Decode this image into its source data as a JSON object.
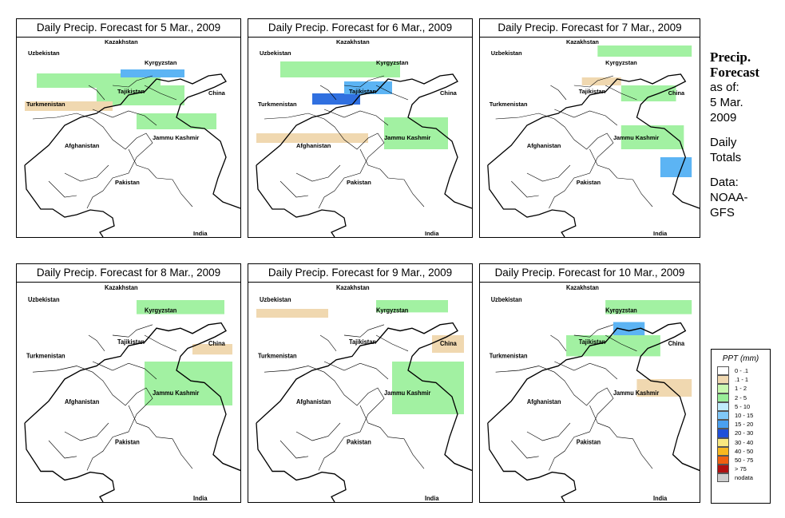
{
  "panels": [
    {
      "title": "Daily Precip. Forecast for  5 Mar., 2009",
      "bands": [
        {
          "x": 25,
          "y": 45,
          "w": 155,
          "h": 18,
          "c": "#a2f1a2"
        },
        {
          "x": 130,
          "y": 40,
          "w": 80,
          "h": 10,
          "c": "#5cb4f4"
        },
        {
          "x": 100,
          "y": 60,
          "w": 110,
          "h": 25,
          "c": "#a2f1a2"
        },
        {
          "x": 150,
          "y": 95,
          "w": 100,
          "h": 20,
          "c": "#a2f1a2"
        },
        {
          "x": 10,
          "y": 80,
          "w": 110,
          "h": 12,
          "c": "#f0d8b0"
        }
      ]
    },
    {
      "title": "Daily Precip. Forecast for  6 Mar., 2009",
      "bands": [
        {
          "x": 40,
          "y": 30,
          "w": 150,
          "h": 20,
          "c": "#a2f1a2"
        },
        {
          "x": 80,
          "y": 70,
          "w": 60,
          "h": 14,
          "c": "#3070e0"
        },
        {
          "x": 120,
          "y": 55,
          "w": 60,
          "h": 16,
          "c": "#5cb4f4"
        },
        {
          "x": 170,
          "y": 100,
          "w": 80,
          "h": 40,
          "c": "#a2f1a2"
        },
        {
          "x": 10,
          "y": 120,
          "w": 140,
          "h": 12,
          "c": "#f0d8b0"
        }
      ]
    },
    {
      "title": "Daily Precip. Forecast for  7 Mar., 2009",
      "bands": [
        {
          "x": 150,
          "y": 10,
          "w": 120,
          "h": 14,
          "c": "#a2f1a2"
        },
        {
          "x": 180,
          "y": 60,
          "w": 70,
          "h": 20,
          "c": "#a2f1a2"
        },
        {
          "x": 180,
          "y": 110,
          "w": 80,
          "h": 30,
          "c": "#a2f1a2"
        },
        {
          "x": 230,
          "y": 150,
          "w": 40,
          "h": 25,
          "c": "#5cb4f4"
        },
        {
          "x": 130,
          "y": 50,
          "w": 50,
          "h": 10,
          "c": "#f0d8b0"
        }
      ]
    },
    {
      "title": "Daily Precip. Forecast for  8 Mar., 2009",
      "bands": [
        {
          "x": 150,
          "y": 20,
          "w": 110,
          "h": 16,
          "c": "#a2f1a2"
        },
        {
          "x": 170,
          "y": 100,
          "w": 70,
          "h": 30,
          "c": "#5cb4f4"
        },
        {
          "x": 160,
          "y": 90,
          "w": 110,
          "h": 50,
          "c": "#a2f1a2"
        },
        {
          "x": 220,
          "y": 70,
          "w": 50,
          "h": 12,
          "c": "#f0d8b0"
        }
      ]
    },
    {
      "title": "Daily Precip. Forecast for  9 Mar., 2009",
      "bands": [
        {
          "x": 160,
          "y": 20,
          "w": 90,
          "h": 14,
          "c": "#a2f1a2"
        },
        {
          "x": 180,
          "y": 90,
          "w": 90,
          "h": 60,
          "c": "#a2f1a2"
        },
        {
          "x": 10,
          "y": 30,
          "w": 90,
          "h": 10,
          "c": "#f0d8b0"
        },
        {
          "x": 230,
          "y": 60,
          "w": 40,
          "h": 20,
          "c": "#f0d8b0"
        }
      ]
    },
    {
      "title": "Daily Precip. Forecast for  10 Mar., 2009",
      "bands": [
        {
          "x": 160,
          "y": 20,
          "w": 110,
          "h": 16,
          "c": "#a2f1a2"
        },
        {
          "x": 170,
          "y": 45,
          "w": 40,
          "h": 16,
          "c": "#5cb4f4"
        },
        {
          "x": 110,
          "y": 60,
          "w": 120,
          "h": 24,
          "c": "#a2f1a2"
        },
        {
          "x": 200,
          "y": 110,
          "w": 70,
          "h": 20,
          "c": "#f0d8b0"
        }
      ]
    }
  ],
  "map_labels": {
    "kazakhstan": "Kazakhstan",
    "uzbekistan": "Uzbekistan",
    "kyrgyzstan": "Kyrgyzstan",
    "tajikistan": "Tajikistan",
    "china": "China",
    "turkmenistan": "Turkmenistan",
    "jammu_kashmir": "Jammu Kashmir",
    "afghanistan": "Afghanistan",
    "pakistan": "Pakistan",
    "india": "India"
  },
  "sidebar": {
    "title_line1": "Precip.",
    "title_line2": "Forecast",
    "asof_line1": "as of:",
    "asof_line2": "5 Mar.",
    "asof_line3": "2009",
    "totals_line1": "Daily",
    "totals_line2": "Totals",
    "data_line1": "Data:",
    "data_line2": "NOAA-",
    "data_line3": "GFS"
  },
  "legend": {
    "title": "PPT (mm)",
    "items": [
      {
        "label": "0 - .1",
        "color": "#ffffff"
      },
      {
        "label": ".1 - 1",
        "color": "#f0d8b0"
      },
      {
        "label": "1 - 2",
        "color": "#c8f8b0"
      },
      {
        "label": "2 - 5",
        "color": "#98ee98"
      },
      {
        "label": "5 - 10",
        "color": "#c0ecfc"
      },
      {
        "label": "10 - 15",
        "color": "#80c8f8"
      },
      {
        "label": "15 - 20",
        "color": "#4aa0f0"
      },
      {
        "label": "20 - 30",
        "color": "#2050d8"
      },
      {
        "label": "30 - 40",
        "color": "#f8e880"
      },
      {
        "label": "40 - 50",
        "color": "#f8b820"
      },
      {
        "label": "50 - 75",
        "color": "#f06010"
      },
      {
        "label": "> 75",
        "color": "#b01010"
      },
      {
        "label": "nodata",
        "color": "#cccccc"
      }
    ]
  }
}
